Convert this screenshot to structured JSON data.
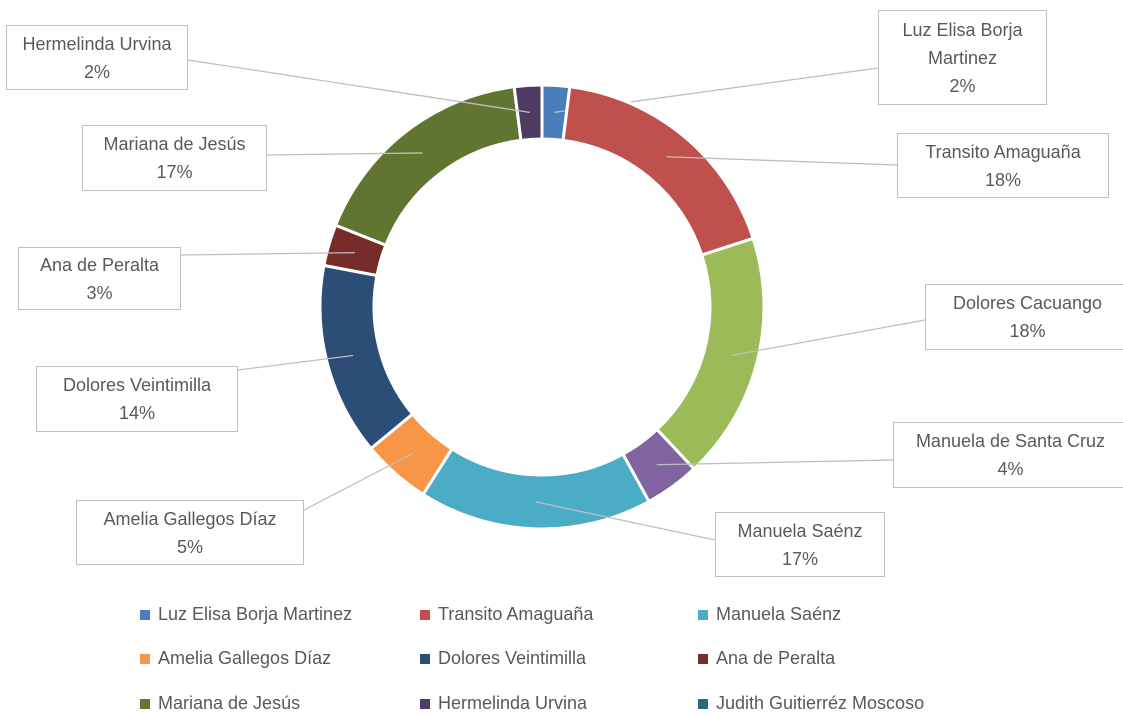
{
  "chart_data": {
    "type": "doughnut",
    "categories": [
      "Luz Elisa Borja Martinez",
      "Transito Amaguaña",
      "Dolores Cacuango",
      "Manuela de Santa Cruz",
      "Manuela Saénz",
      "Amelia Gallegos Díaz",
      "Dolores Veintimilla",
      "Ana de Peralta",
      "Mariana de Jesús",
      "Hermelinda Urvina"
    ],
    "values": [
      2,
      18,
      18,
      4,
      17,
      5,
      14,
      3,
      17,
      2
    ],
    "value_labels": [
      "2%",
      "18%",
      "18%",
      "4%",
      "17%",
      "5%",
      "14%",
      "3%",
      "17%",
      "2%"
    ],
    "colors": [
      "#4a7ebb",
      "#c0504d",
      "#9bbb59",
      "#8064a2",
      "#4bacc6",
      "#f79646",
      "#2c4d75",
      "#772c2a",
      "#5f7530",
      "#4d3b62"
    ],
    "legend": [
      {
        "name": "Luz Elisa Borja Martinez",
        "color": "#4a7ebb"
      },
      {
        "name": "Transito Amaguaña",
        "color": "#c0504d"
      },
      {
        "name": "Manuela Saénz",
        "color": "#4bacc6"
      },
      {
        "name": "Amelia Gallegos Díaz",
        "color": "#f79646"
      },
      {
        "name": "Dolores Veintimilla",
        "color": "#2c4d75"
      },
      {
        "name": "Ana de Peralta",
        "color": "#772c2a"
      },
      {
        "name": "Mariana de Jesús",
        "color": "#5f7530"
      },
      {
        "name": "Hermelinda Urvina",
        "color": "#4d3b62"
      },
      {
        "name": "Judith Guitierréz Moscoso",
        "color": "#276a7c"
      }
    ]
  }
}
